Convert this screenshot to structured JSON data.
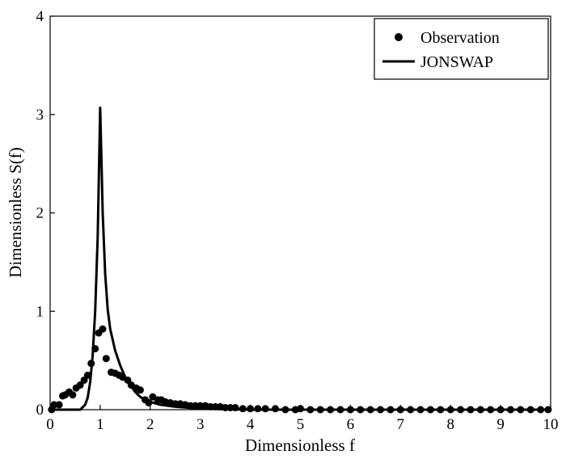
{
  "chart_data": {
    "type": "scatter",
    "title": "",
    "xlabel": "Dimensionless f",
    "ylabel": "Dimensionless S(f)",
    "xlim": [
      0,
      10
    ],
    "ylim": [
      0,
      4
    ],
    "xticks": [
      "0",
      "1",
      "2",
      "3",
      "4",
      "5",
      "6",
      "7",
      "8",
      "9",
      "10"
    ],
    "yticks": [
      "0",
      "1",
      "2",
      "3",
      "4"
    ],
    "grid": false,
    "legend_position": "top-right",
    "series": [
      {
        "name": "Observation",
        "kind": "scatter",
        "color": "#000000",
        "x": [
          0.03,
          0.08,
          0.18,
          0.25,
          0.3,
          0.38,
          0.45,
          0.52,
          0.6,
          0.68,
          0.75,
          0.82,
          0.9,
          0.97,
          1.05,
          1.12,
          1.22,
          1.3,
          1.38,
          1.45,
          1.55,
          1.62,
          1.72,
          1.8,
          1.9,
          1.97,
          2.05,
          2.15,
          2.22,
          2.3,
          2.4,
          2.5,
          2.6,
          2.7,
          2.8,
          2.9,
          3.0,
          3.1,
          3.2,
          3.3,
          3.4,
          3.5,
          3.6,
          3.7,
          3.85,
          4.0,
          4.15,
          4.3,
          4.5,
          4.7,
          4.9,
          5.0,
          5.2,
          5.4,
          5.6,
          5.8,
          6.0,
          6.2,
          6.4,
          6.6,
          6.8,
          7.0,
          7.2,
          7.4,
          7.6,
          7.8,
          8.0,
          8.2,
          8.4,
          8.6,
          8.8,
          9.0,
          9.2,
          9.4,
          9.6,
          9.8,
          9.95
        ],
        "y": [
          0.0,
          0.05,
          0.05,
          0.14,
          0.15,
          0.18,
          0.15,
          0.22,
          0.25,
          0.3,
          0.35,
          0.47,
          0.62,
          0.78,
          0.82,
          0.52,
          0.38,
          0.37,
          0.35,
          0.33,
          0.3,
          0.25,
          0.22,
          0.2,
          0.1,
          0.07,
          0.13,
          0.1,
          0.1,
          0.08,
          0.07,
          0.06,
          0.06,
          0.05,
          0.04,
          0.04,
          0.04,
          0.04,
          0.03,
          0.03,
          0.03,
          0.02,
          0.02,
          0.02,
          0.01,
          0.01,
          0.01,
          0.01,
          0.01,
          0.0,
          0.0,
          0.01,
          0.0,
          0.0,
          0.0,
          0.0,
          0.0,
          0.0,
          0.0,
          0.0,
          0.0,
          0.0,
          0.0,
          0.0,
          0.0,
          0.0,
          0.0,
          0.0,
          0.0,
          0.0,
          0.0,
          0.0,
          0.0,
          0.0,
          0.0,
          0.0,
          0.0
        ]
      },
      {
        "name": "JONSWAP",
        "kind": "line",
        "color": "#000000",
        "x": [
          0.0,
          0.5,
          0.6,
          0.7,
          0.75,
          0.8,
          0.85,
          0.9,
          0.95,
          0.98,
          1.0,
          1.02,
          1.05,
          1.1,
          1.15,
          1.2,
          1.3,
          1.4,
          1.5,
          1.6,
          1.7,
          1.8,
          1.9,
          2.0,
          2.2,
          2.5,
          3.0,
          3.5,
          4.0,
          5.0,
          6.0,
          8.0,
          10.0
        ],
        "y": [
          0.0,
          0.0,
          0.0,
          0.05,
          0.12,
          0.28,
          0.55,
          1.0,
          1.75,
          2.55,
          3.07,
          2.65,
          2.0,
          1.38,
          1.02,
          0.82,
          0.6,
          0.45,
          0.33,
          0.25,
          0.18,
          0.13,
          0.1,
          0.08,
          0.05,
          0.03,
          0.01,
          0.005,
          0.0,
          0.0,
          0.0,
          0.0,
          0.0
        ]
      }
    ]
  }
}
